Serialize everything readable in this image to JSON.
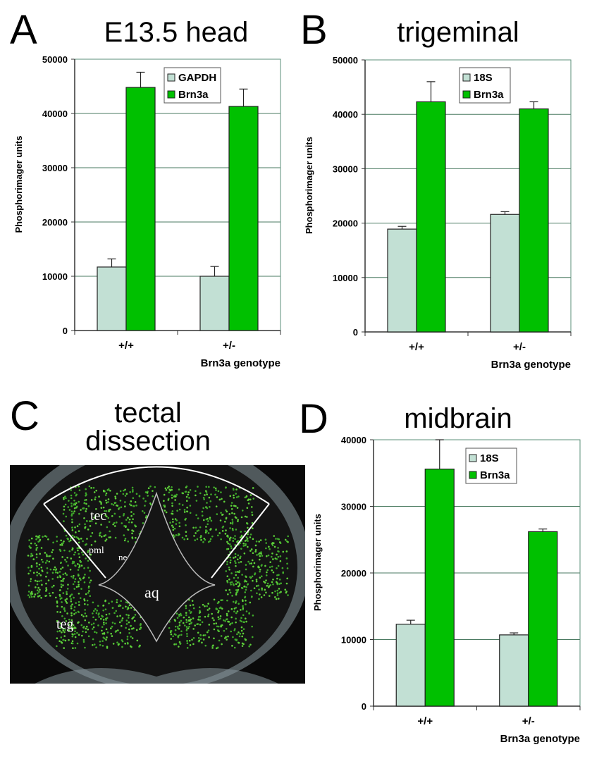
{
  "panels": {
    "A": {
      "letter": "A",
      "title": "E13.5 head"
    },
    "B": {
      "letter": "B",
      "title": "trigeminal"
    },
    "C": {
      "letter": "C",
      "title_line1": "tectal",
      "title_line2": "dissection",
      "image_labels": {
        "tec": "tec",
        "pml": "pml",
        "ne": "ne",
        "aq": "aq",
        "teg": "teg"
      }
    },
    "D": {
      "letter": "D",
      "title": "midbrain"
    }
  },
  "colors": {
    "control": "#c2e0d4",
    "brn3a": "#00c000",
    "grid": "#4a7a60",
    "frame": "#5b8f78"
  },
  "chart_data": [
    {
      "id": "A",
      "type": "bar",
      "title": "E13.5 head",
      "ylabel": "Phosphorimager units",
      "xlabel": "Brn3a genotype",
      "categories": [
        "+/+",
        "+/-"
      ],
      "ylim": [
        0,
        50000
      ],
      "yticks": [
        "0",
        "10000",
        "20000",
        "30000",
        "40000",
        "50000"
      ],
      "grid": true,
      "legend": "top-center",
      "series": [
        {
          "name": "GAPDH",
          "values": [
            11700,
            10000
          ],
          "error_upper": [
            13200,
            11800
          ]
        },
        {
          "name": "Brn3a",
          "values": [
            44800,
            41300
          ],
          "error_upper": [
            47600,
            44500
          ]
        }
      ]
    },
    {
      "id": "B",
      "type": "bar",
      "title": "trigeminal",
      "ylabel": "Phosphorimager units",
      "xlabel": "Brn3a genotype",
      "categories": [
        "+/+",
        "+/-"
      ],
      "ylim": [
        0,
        50000
      ],
      "yticks": [
        "0",
        "10000",
        "20000",
        "30000",
        "40000",
        "50000"
      ],
      "grid": true,
      "legend": "top-center",
      "series": [
        {
          "name": "18S",
          "values": [
            18900,
            21600
          ],
          "error_upper": [
            19400,
            22100
          ]
        },
        {
          "name": "Brn3a",
          "values": [
            42300,
            41000
          ],
          "error_upper": [
            46000,
            42300
          ]
        }
      ]
    },
    {
      "id": "D",
      "type": "bar",
      "title": "midbrain",
      "ylabel": "Phosphorimager units",
      "xlabel": "Brn3a genotype",
      "categories": [
        "+/+",
        "+/-"
      ],
      "ylim": [
        0,
        40000
      ],
      "yticks": [
        "0",
        "10000",
        "20000",
        "30000",
        "40000"
      ],
      "grid": true,
      "legend": "top-center",
      "series": [
        {
          "name": "18S",
          "values": [
            12300,
            10700
          ],
          "error_upper": [
            12900,
            11000
          ]
        },
        {
          "name": "Brn3a",
          "values": [
            35600,
            26200
          ],
          "error_upper": [
            40000,
            26600
          ]
        }
      ]
    }
  ]
}
